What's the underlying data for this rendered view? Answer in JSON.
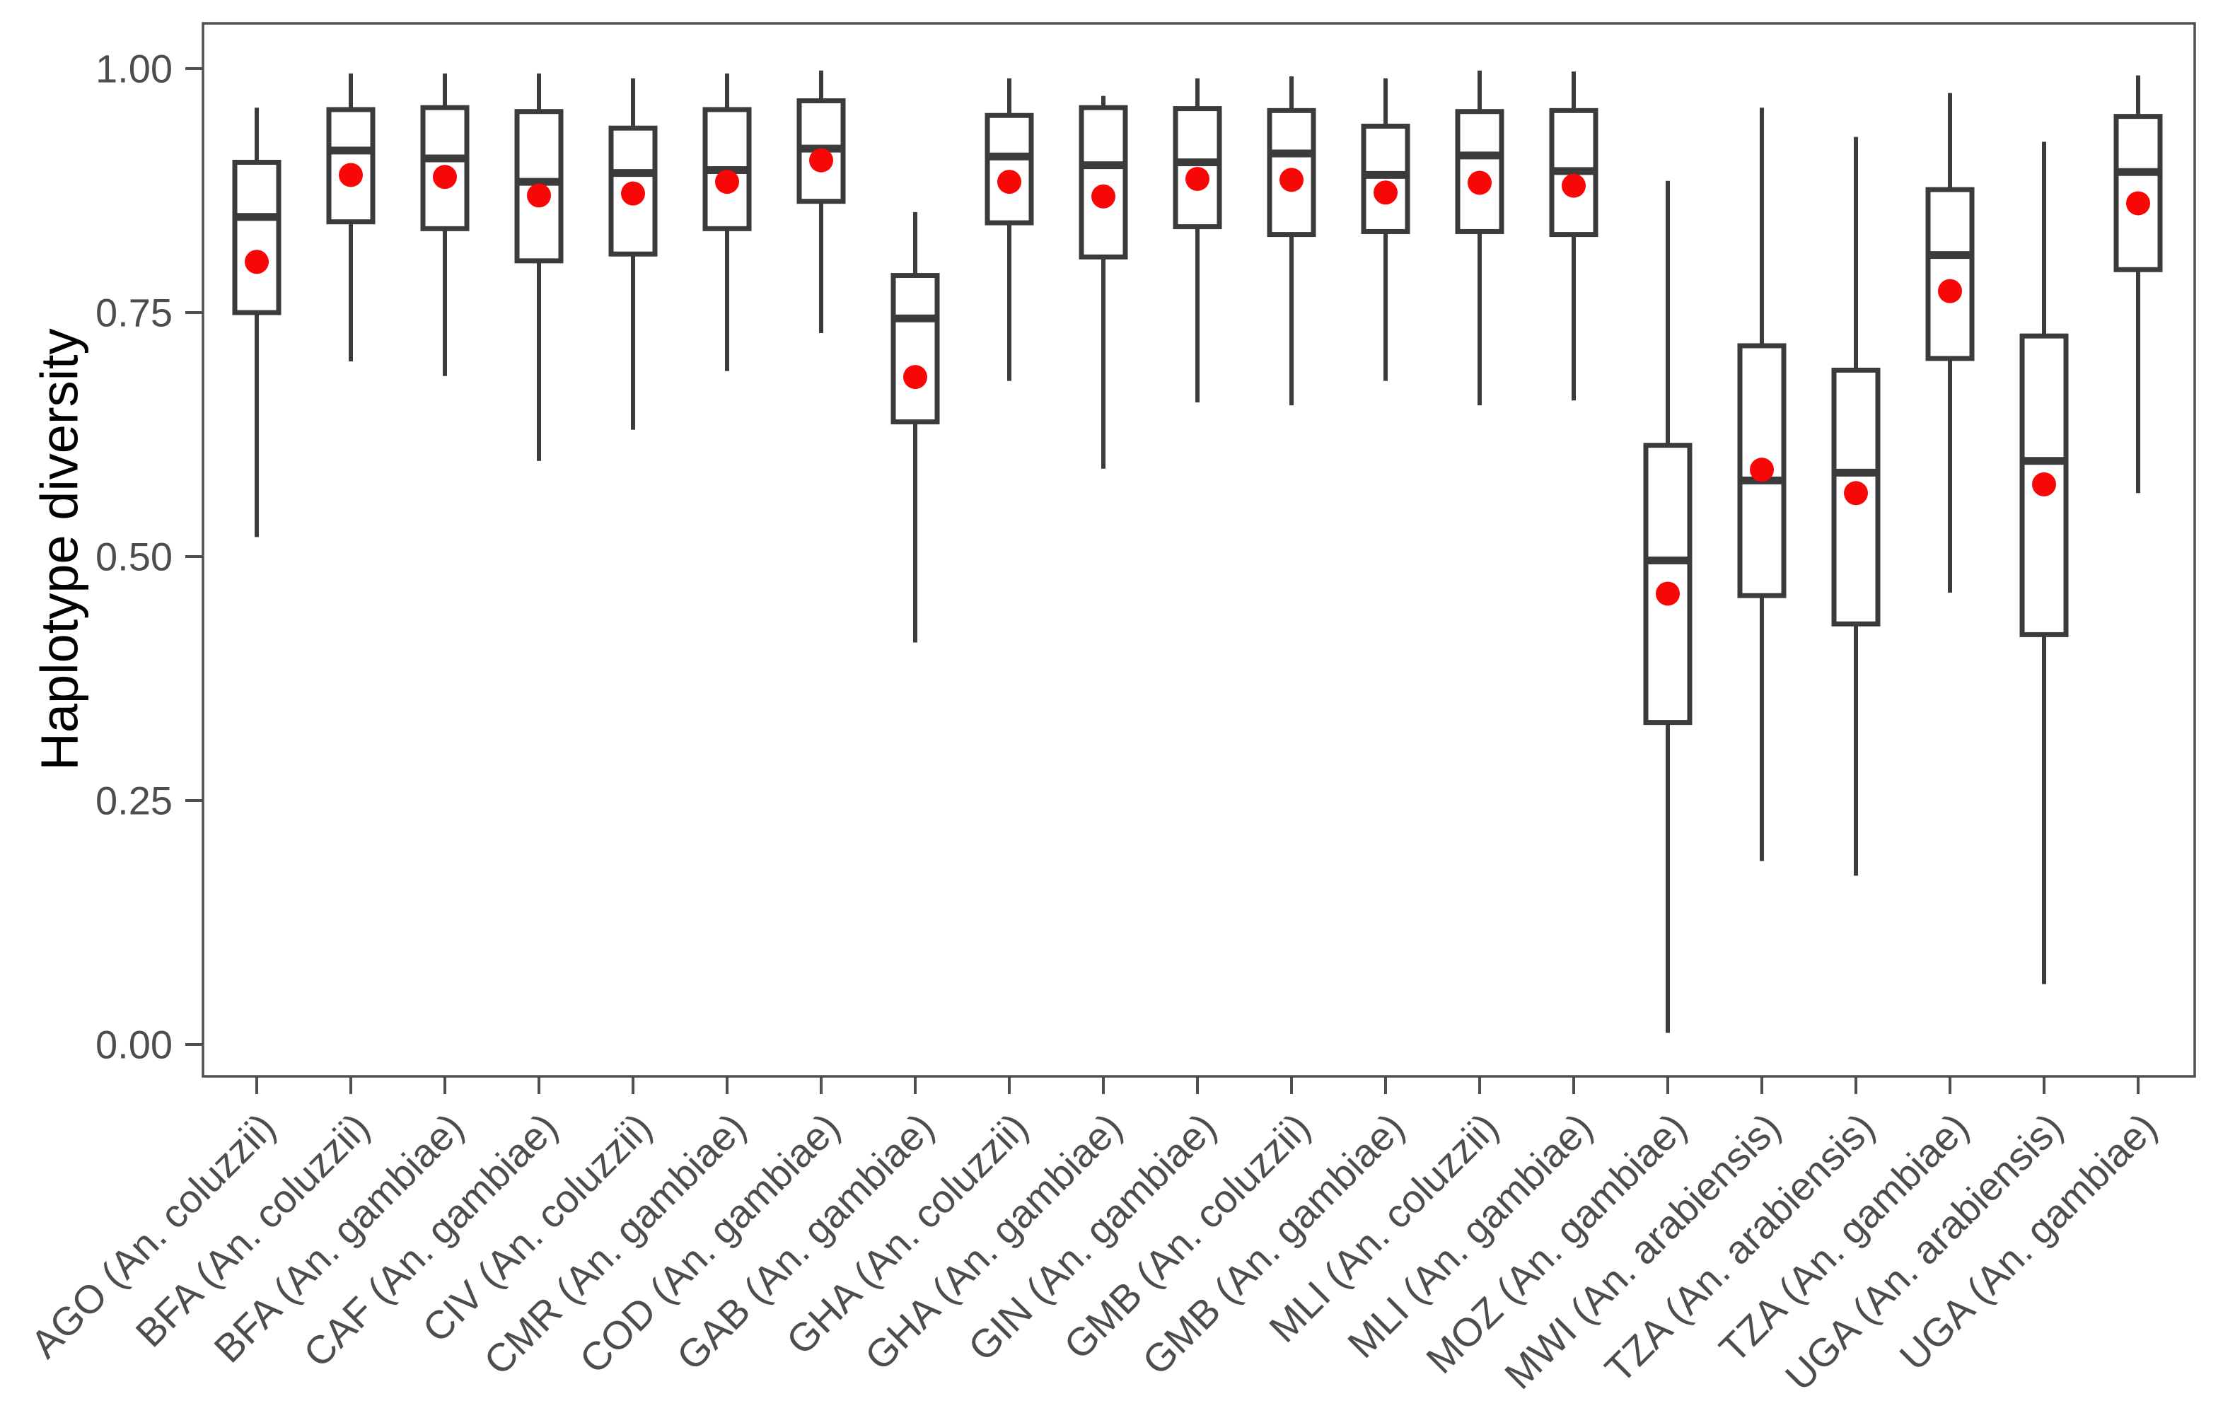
{
  "figure": {
    "background_color": "#ffffff"
  },
  "chart_data": {
    "type": "boxplot",
    "title": "",
    "subtitle": "",
    "xlabel": "",
    "ylabel": "Haplotype diversity",
    "legend": "none",
    "grid": "off",
    "panel_background": "#ffffff",
    "panel_border_color": "#4f4f4f",
    "axis_tick_color": "#4f4f4f",
    "tick_label_color": "#4d4d4d",
    "axis_title_color": "#000000",
    "box_fill_color": "#ffffff",
    "box_stroke_color": "#3b3b3b",
    "median_color": "#3b3b3b",
    "whisker_color": "#3b3b3b",
    "mean_point_color": "#f80707",
    "ylim": [
      -0.033,
      1.046
    ],
    "yticks": {
      "values": [
        0.0,
        0.25,
        0.5,
        0.75,
        1.0
      ],
      "labels": [
        "0.00",
        "0.25",
        "0.50",
        "0.75",
        "1.00"
      ]
    },
    "x_tick_angle_deg": 45,
    "categories": [
      "AGO (An. coluzzii)",
      "BFA (An. coluzzii)",
      "BFA (An. gambiae)",
      "CAF (An. gambiae)",
      "CIV (An. coluzzii)",
      "CMR (An. gambiae)",
      "COD (An. gambiae)",
      "GAB (An. gambiae)",
      "GHA (An. coluzzii)",
      "GHA (An. gambiae)",
      "GIN (An. gambiae)",
      "GMB (An. coluzzii)",
      "GMB (An. gambiae)",
      "MLI (An. coluzzii)",
      "MLI (An. gambiae)",
      "MOZ (An. gambiae)",
      "MWI (An. arabiensis)",
      "TZA (An. arabiensis)",
      "TZA (An. gambiae)",
      "UGA (An. arabiensis)",
      "UGA (An. gambiae)"
    ],
    "boxes": [
      {
        "category": "AGO (An. coluzzii)",
        "whisker_low": 0.52,
        "q1": 0.75,
        "median": 0.848,
        "mean": 0.802,
        "q3": 0.904,
        "whisker_high": 0.96
      },
      {
        "category": "BFA (An. coluzzii)",
        "whisker_low": 0.7,
        "q1": 0.843,
        "median": 0.916,
        "mean": 0.891,
        "q3": 0.958,
        "whisker_high": 0.995
      },
      {
        "category": "BFA (An. gambiae)",
        "whisker_low": 0.685,
        "q1": 0.836,
        "median": 0.908,
        "mean": 0.889,
        "q3": 0.96,
        "whisker_high": 0.995
      },
      {
        "category": "CAF (An. gambiae)",
        "whisker_low": 0.598,
        "q1": 0.803,
        "median": 0.884,
        "mean": 0.87,
        "q3": 0.956,
        "whisker_high": 0.995
      },
      {
        "category": "CIV (An. coluzzii)",
        "whisker_low": 0.63,
        "q1": 0.81,
        "median": 0.893,
        "mean": 0.872,
        "q3": 0.939,
        "whisker_high": 0.99
      },
      {
        "category": "CMR (An. gambiae)",
        "whisker_low": 0.69,
        "q1": 0.836,
        "median": 0.896,
        "mean": 0.884,
        "q3": 0.958,
        "whisker_high": 0.995
      },
      {
        "category": "COD (An. gambiae)",
        "whisker_low": 0.729,
        "q1": 0.864,
        "median": 0.918,
        "mean": 0.906,
        "q3": 0.967,
        "whisker_high": 0.998
      },
      {
        "category": "GAB (An. gambiae)",
        "whisker_low": 0.412,
        "q1": 0.638,
        "median": 0.744,
        "mean": 0.684,
        "q3": 0.788,
        "whisker_high": 0.853
      },
      {
        "category": "GHA (An. coluzzii)",
        "whisker_low": 0.68,
        "q1": 0.842,
        "median": 0.91,
        "mean": 0.884,
        "q3": 0.952,
        "whisker_high": 0.99
      },
      {
        "category": "GHA (An. gambiae)",
        "whisker_low": 0.59,
        "q1": 0.807,
        "median": 0.901,
        "mean": 0.869,
        "q3": 0.96,
        "whisker_high": 0.972
      },
      {
        "category": "GIN (An. gambiae)",
        "whisker_low": 0.658,
        "q1": 0.838,
        "median": 0.904,
        "mean": 0.887,
        "q3": 0.959,
        "whisker_high": 0.99
      },
      {
        "category": "GMB (An. coluzzii)",
        "whisker_low": 0.655,
        "q1": 0.83,
        "median": 0.913,
        "mean": 0.886,
        "q3": 0.957,
        "whisker_high": 0.992
      },
      {
        "category": "GMB (An. gambiae)",
        "whisker_low": 0.68,
        "q1": 0.833,
        "median": 0.891,
        "mean": 0.873,
        "q3": 0.941,
        "whisker_high": 0.99
      },
      {
        "category": "MLI (An. coluzzii)",
        "whisker_low": 0.655,
        "q1": 0.833,
        "median": 0.911,
        "mean": 0.883,
        "q3": 0.956,
        "whisker_high": 0.998
      },
      {
        "category": "MLI (An. gambiae)",
        "whisker_low": 0.66,
        "q1": 0.83,
        "median": 0.895,
        "mean": 0.88,
        "q3": 0.957,
        "whisker_high": 0.997
      },
      {
        "category": "MOZ (An. gambiae)",
        "whisker_low": 0.012,
        "q1": 0.33,
        "median": 0.496,
        "mean": 0.462,
        "q3": 0.614,
        "whisker_high": 0.885
      },
      {
        "category": "MWI (An. arabiensis)",
        "whisker_low": 0.188,
        "q1": 0.46,
        "median": 0.578,
        "mean": 0.589,
        "q3": 0.716,
        "whisker_high": 0.96
      },
      {
        "category": "TZA (An. arabiensis)",
        "whisker_low": 0.173,
        "q1": 0.431,
        "median": 0.586,
        "mean": 0.565,
        "q3": 0.691,
        "whisker_high": 0.93
      },
      {
        "category": "TZA (An. gambiae)",
        "whisker_low": 0.463,
        "q1": 0.703,
        "median": 0.809,
        "mean": 0.772,
        "q3": 0.876,
        "whisker_high": 0.975
      },
      {
        "category": "UGA (An. arabiensis)",
        "whisker_low": 0.062,
        "q1": 0.42,
        "median": 0.598,
        "mean": 0.574,
        "q3": 0.726,
        "whisker_high": 0.925
      },
      {
        "category": "UGA (An. gambiae)",
        "whisker_low": 0.565,
        "q1": 0.794,
        "median": 0.894,
        "mean": 0.862,
        "q3": 0.951,
        "whisker_high": 0.993
      }
    ]
  }
}
